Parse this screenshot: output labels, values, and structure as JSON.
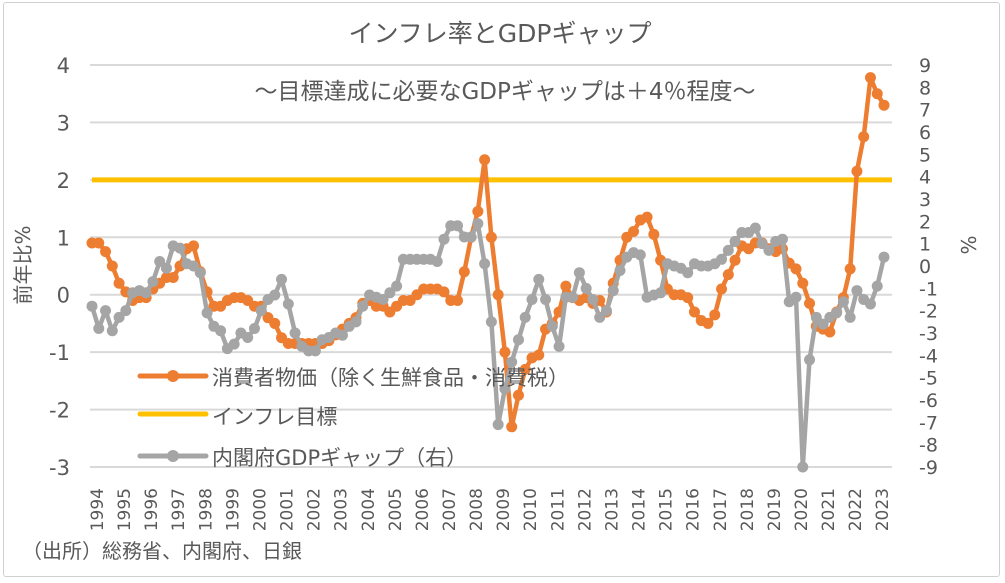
{
  "chart_data": {
    "type": "line",
    "title": "インフレ率とGDPギャップ",
    "subtitle": "～目標達成に必要なGDPギャップは＋4％程度～",
    "ylabel": "前年比%",
    "ylabel_right": "%",
    "ylim": [
      -3,
      4
    ],
    "ylim_right": [
      -9,
      9
    ],
    "yticks": [
      "4",
      "3",
      "2",
      "1",
      "0",
      "-1",
      "-2",
      "-3"
    ],
    "yticks_right": [
      "9",
      "8",
      "7",
      "6",
      "5",
      "4",
      "3",
      "2",
      "1",
      "0",
      "-1",
      "-2",
      "-3",
      "-4",
      "-5",
      "-6",
      "-7",
      "-8",
      "-9"
    ],
    "x_tick_labels": [
      "1994",
      "1995",
      "1996",
      "1997",
      "1998",
      "1999",
      "2000",
      "2001",
      "2002",
      "2003",
      "2004",
      "2005",
      "2006",
      "2007",
      "2008",
      "2009",
      "2010",
      "2011",
      "2012",
      "2013",
      "2014",
      "2015",
      "2016",
      "2017",
      "2018",
      "2019",
      "2020",
      "2021",
      "2022",
      "2023"
    ],
    "x_frequency": "quarterly",
    "x_start": "1994Q1",
    "x_end": "2023Q2",
    "grid": true,
    "legend_placement": "bottom-left (inside)",
    "source_note": "（出所）総務省、内閣府、日銀",
    "series": [
      {
        "name": "消費者物価（除く生鮮食品・消費税）",
        "axis": "left",
        "color": "#ED7D31",
        "markers": true,
        "values": [
          0.9,
          0.9,
          0.75,
          0.5,
          0.2,
          0.05,
          -0.1,
          -0.05,
          -0.05,
          0.1,
          0.2,
          0.3,
          0.3,
          0.5,
          0.8,
          0.85,
          0.4,
          0.05,
          -0.2,
          -0.2,
          -0.1,
          -0.05,
          -0.05,
          -0.1,
          -0.2,
          -0.2,
          -0.4,
          -0.5,
          -0.75,
          -0.85,
          -0.85,
          -0.85,
          -0.85,
          -0.85,
          -0.85,
          -0.8,
          -0.7,
          -0.6,
          -0.5,
          -0.4,
          -0.15,
          -0.1,
          -0.2,
          -0.2,
          -0.3,
          -0.2,
          -0.1,
          -0.1,
          0.0,
          0.1,
          0.1,
          0.1,
          0.05,
          -0.1,
          -0.1,
          0.4,
          1.0,
          1.45,
          2.35,
          1.0,
          0.0,
          -1.0,
          -2.3,
          -1.75,
          -1.3,
          -1.1,
          -1.05,
          -0.6,
          -0.5,
          -0.3,
          0.15,
          -0.05,
          -0.1,
          -0.05,
          -0.15,
          -0.1,
          -0.3,
          0.2,
          0.6,
          1.0,
          1.1,
          1.3,
          1.35,
          1.05,
          0.6,
          0.1,
          0.0,
          0.0,
          -0.05,
          -0.3,
          -0.45,
          -0.5,
          -0.35,
          0.1,
          0.35,
          0.6,
          0.85,
          0.8,
          0.9,
          0.9,
          0.8,
          0.75,
          0.8,
          0.55,
          0.45,
          0.2,
          -0.15,
          -0.55,
          -0.6,
          -0.65,
          -0.3,
          -0.05,
          0.45,
          2.15,
          2.75,
          3.78,
          3.5,
          3.3
        ]
      },
      {
        "name": "インフレ目標",
        "axis": "left",
        "color": "#FFC000",
        "markers": false,
        "constant": 2
      },
      {
        "name": "内閣府GDPギャップ（右）",
        "axis": "right",
        "color": "#A5A5A5",
        "markers": true,
        "values": [
          -1.8,
          -2.8,
          -2.0,
          -2.9,
          -2.3,
          -2.0,
          -1.2,
          -1.1,
          -1.2,
          -0.7,
          0.2,
          -0.1,
          0.9,
          0.8,
          0.1,
          0.0,
          -0.3,
          -2.1,
          -2.7,
          -2.9,
          -3.7,
          -3.5,
          -3.0,
          -3.2,
          -2.8,
          -2.0,
          -1.5,
          -1.3,
          -0.6,
          -1.7,
          -3.0,
          -3.6,
          -3.8,
          -3.8,
          -3.3,
          -3.2,
          -3.0,
          -3.1,
          -2.7,
          -2.5,
          -1.8,
          -1.3,
          -1.4,
          -1.5,
          -1.2,
          -0.9,
          0.3,
          0.3,
          0.3,
          0.3,
          0.3,
          0.2,
          1.2,
          1.8,
          1.8,
          1.3,
          1.3,
          1.9,
          0.1,
          -2.5,
          -7.1,
          -5.5,
          -4.3,
          -3.3,
          -2.3,
          -1.5,
          -0.6,
          -1.5,
          -2.7,
          -3.6,
          -1.4,
          -1.4,
          -0.3,
          -1.0,
          -1.5,
          -2.3,
          -2.0,
          -1.1,
          -0.2,
          0.4,
          0.6,
          0.5,
          -1.4,
          -1.3,
          -1.2,
          0.1,
          0.0,
          -0.1,
          -0.3,
          0.1,
          0.0,
          0.0,
          0.1,
          0.3,
          0.7,
          1.1,
          1.5,
          1.5,
          1.7,
          1.0,
          0.7,
          1.1,
          1.2,
          -1.6,
          -1.4,
          -9.0,
          -4.2,
          -2.3,
          -2.6,
          -2.3,
          -2.1,
          -1.6,
          -2.3,
          -1.1,
          -1.5,
          -1.7,
          -0.9,
          0.4
        ]
      }
    ]
  }
}
